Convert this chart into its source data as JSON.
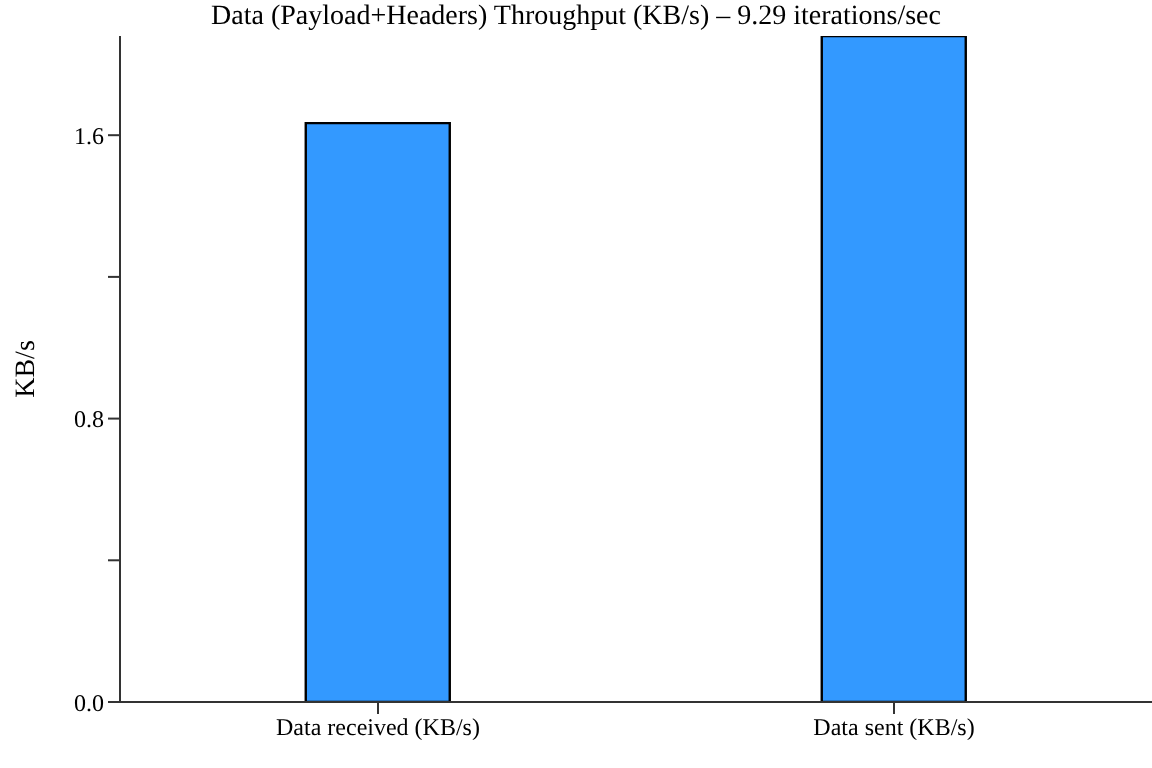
{
  "chart_data": {
    "type": "bar",
    "title": "Data (Payload+Headers) Throughput (KB/s) – 9.29 iterations/sec",
    "ylabel": "KB/s",
    "categories": [
      "Data received (KB/s)",
      "Data sent (KB/s)"
    ],
    "values": [
      1.634,
      1.88
    ],
    "color": "#3399ff",
    "ylim": [
      0,
      1.88
    ],
    "yticks": [
      {
        "value": 0,
        "label": "0.0"
      },
      {
        "value": 0.4,
        "label": null
      },
      {
        "value": 0.8,
        "label": "0.8"
      },
      {
        "value": 1.2,
        "label": null
      },
      {
        "value": 1.6,
        "label": "1.6"
      }
    ],
    "grid": false,
    "legend": false
  }
}
